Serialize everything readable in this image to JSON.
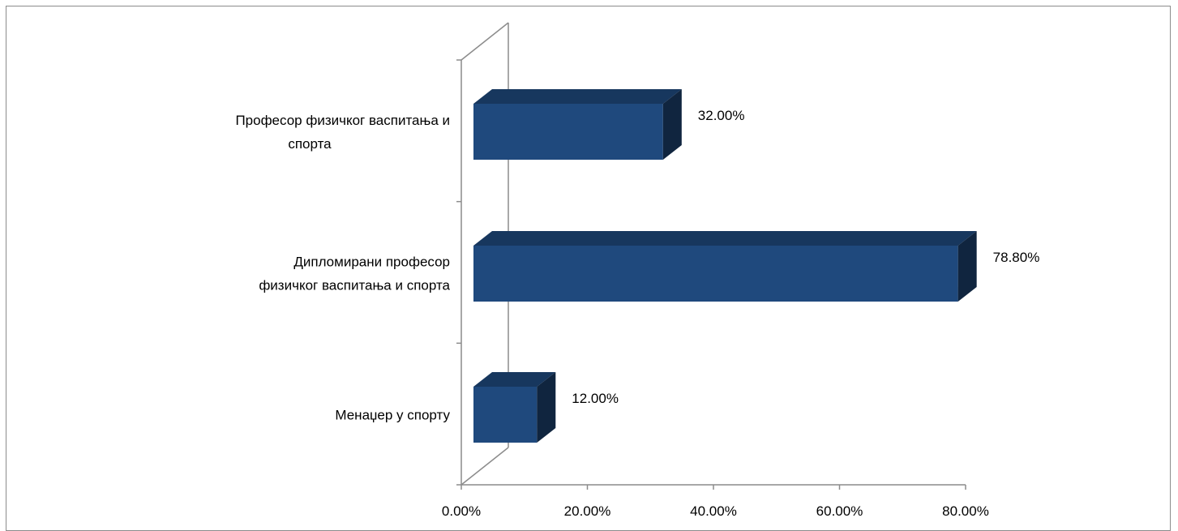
{
  "chart_data": {
    "type": "bar",
    "orientation": "horizontal",
    "style": "3d",
    "categories": [
      "Професор физичког васпитања и спорта",
      "Дипломирани професор физичког васпитања и спорта",
      "Менаџер у спорту"
    ],
    "category_lines": [
      [
        "Професор физичког васпитања и",
        "спорта"
      ],
      [
        "Дипломирани професор",
        "физичког васпитања и спорта"
      ],
      [
        "Менаџер у спорту"
      ]
    ],
    "values": [
      32.0,
      78.8,
      12.0
    ],
    "value_labels": [
      "32.00%",
      "78.80%",
      "12.00%"
    ],
    "xlim": [
      0,
      80
    ],
    "xticks": [
      0,
      20,
      40,
      60,
      80
    ],
    "xtick_labels": [
      "0.00%",
      "20.00%",
      "40.00%",
      "60.00%",
      "80.00%"
    ],
    "title": "",
    "xlabel": "",
    "ylabel": "",
    "grid": false,
    "legend": "none",
    "colors": {
      "bar_front": "#1f497d",
      "bar_top": "#17375e",
      "bar_side": "#10253f",
      "axis": "#8c8c8c"
    }
  }
}
